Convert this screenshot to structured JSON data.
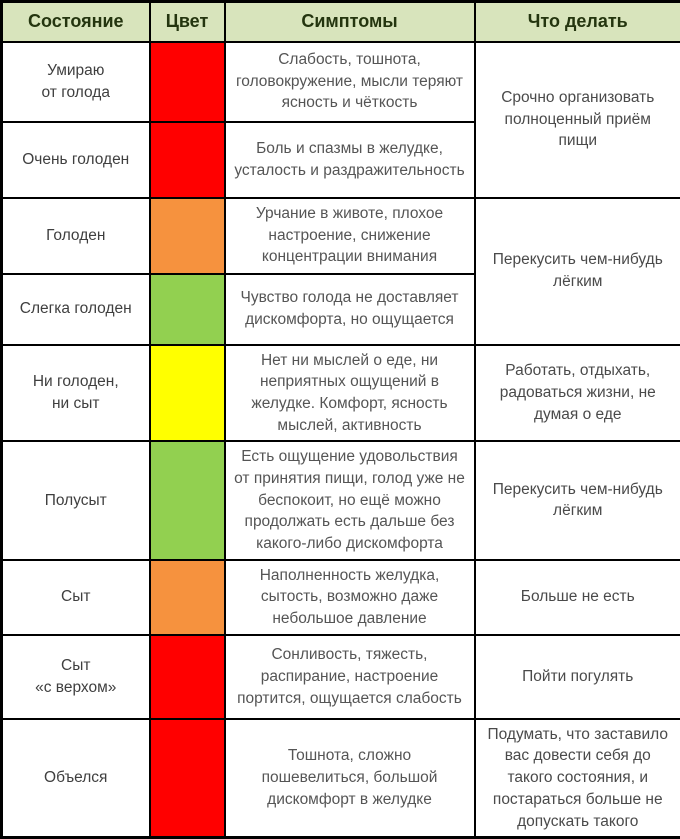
{
  "header": {
    "state": "Состояние",
    "color": "Цвет",
    "symptoms": "Симптомы",
    "action": "Что делать"
  },
  "colors": {
    "red": "#ff0000",
    "orange": "#f6923e",
    "green": "#92d050",
    "yellow": "#ffff00",
    "header_bg": "#d8e4bc",
    "border": "#000000"
  },
  "rows": [
    {
      "state": "Умираю\nот голода",
      "color": "#ff0000",
      "color_name": "red",
      "symptoms": "Слабость, тошнота, головокружение, мысли теряют ясность и чёткость"
    },
    {
      "state": "Очень голоден",
      "color": "#ff0000",
      "color_name": "red",
      "symptoms": "Боль и спазмы в желудке, усталость и раздражительность"
    },
    {
      "state": "Голоден",
      "color": "#f6923e",
      "color_name": "orange",
      "symptoms": "Урчание в животе, плохое настроение, снижение концентрации внимания"
    },
    {
      "state": "Слегка голоден",
      "color": "#92d050",
      "color_name": "green",
      "symptoms": "Чувство голода не доставляет дискомфорта, но ощущается"
    },
    {
      "state": "Ни голоден,\nни сыт",
      "color": "#ffff00",
      "color_name": "yellow",
      "symptoms": "Нет ни мыслей о еде, ни неприятных ощущений в желудке. Комфорт, ясность мыслей, активность"
    },
    {
      "state": "Полусыт",
      "color": "#92d050",
      "color_name": "green",
      "symptoms": "Есть ощущение удовольствия от принятия пищи, голод уже не беспокоит, но ещё можно продолжать есть дальше без какого-либо дискомфорта"
    },
    {
      "state": "Сыт",
      "color": "#f6923e",
      "color_name": "orange",
      "symptoms": "Наполненность желудка, сытость, возможно даже небольшое давление"
    },
    {
      "state": "Сыт\n«с верхом»",
      "color": "#ff0000",
      "color_name": "red",
      "symptoms": "Сонливость, тяжесть, распирание, настроение портится, ощущается слабость"
    },
    {
      "state": "Объелся",
      "color": "#ff0000",
      "color_name": "red",
      "symptoms": "Тошнота, сложно пошевелиться, большой дискомфорт в желудке"
    }
  ],
  "actions": [
    {
      "text": "Срочно организовать полноценный приём пищи",
      "rows": "1-2"
    },
    {
      "text": "Перекусить чем-нибудь лёгким",
      "rows": "3-4"
    },
    {
      "text": "Работать, отдыхать, радоваться жизни, не думая о еде",
      "rows": "5"
    },
    {
      "text": "Перекусить чем-нибудь лёгким",
      "rows": "6"
    },
    {
      "text": "Больше не есть",
      "rows": "7"
    },
    {
      "text": "Пойти погулять",
      "rows": "8"
    },
    {
      "text": "Подумать, что заставило вас довести себя до такого состояния, и постараться больше не допускать такого",
      "rows": "9"
    }
  ]
}
